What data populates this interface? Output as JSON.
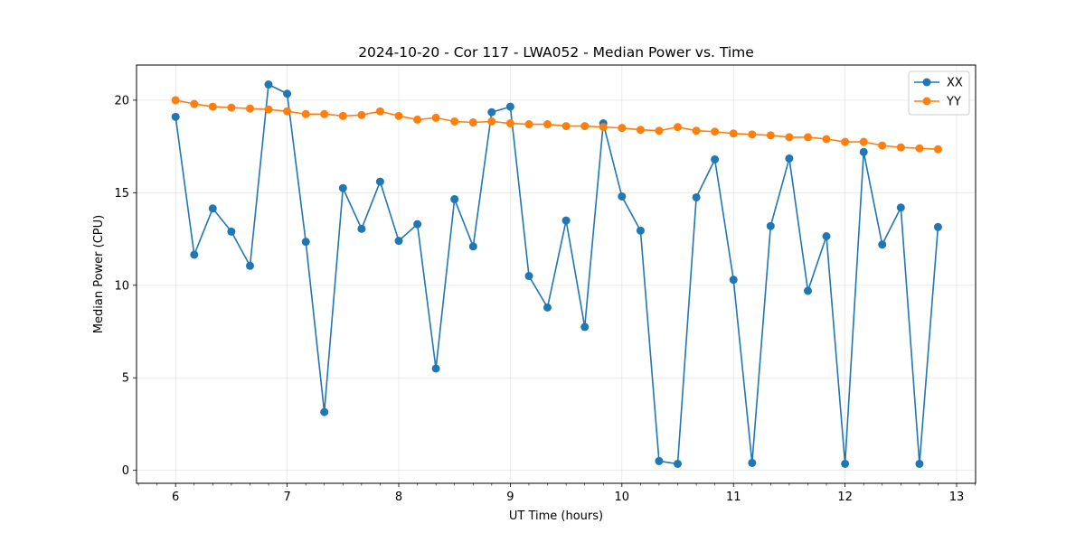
{
  "chart_data": {
    "type": "line",
    "title": "2024-10-20 - Cor 117 - LWA052 - Median Power vs. Time",
    "xlabel": "UT Time (hours)",
    "ylabel": "Median Power (CPU)",
    "xlim": [
      5.65,
      13.17
    ],
    "ylim": [
      -0.7,
      21.9
    ],
    "xticks": [
      6,
      7,
      8,
      9,
      10,
      11,
      12,
      13
    ],
    "yticks": [
      0,
      5,
      10,
      15,
      20
    ],
    "grid": true,
    "legend_position": "top-right",
    "x": [
      6.0,
      6.167,
      6.333,
      6.5,
      6.667,
      6.833,
      7.0,
      7.167,
      7.333,
      7.5,
      7.667,
      7.833,
      8.0,
      8.167,
      8.333,
      8.5,
      8.667,
      8.833,
      9.0,
      9.167,
      9.333,
      9.5,
      9.667,
      9.833,
      10.0,
      10.167,
      10.333,
      10.5,
      10.667,
      10.833,
      11.0,
      11.167,
      11.333,
      11.5,
      11.667,
      11.833,
      12.0,
      12.167,
      12.333,
      12.5,
      12.667,
      12.833
    ],
    "series": [
      {
        "name": "XX",
        "color": "#1f77b4",
        "values": [
          19.1,
          11.65,
          14.15,
          12.9,
          11.05,
          20.85,
          20.35,
          12.35,
          3.15,
          15.25,
          13.05,
          15.6,
          12.4,
          13.3,
          5.5,
          14.65,
          12.1,
          19.35,
          19.65,
          10.5,
          8.8,
          13.5,
          7.75,
          18.75,
          14.8,
          12.95,
          0.5,
          0.35,
          14.75,
          16.8,
          10.3,
          0.4,
          13.2,
          16.85,
          9.7,
          12.65,
          0.35,
          17.2,
          12.2,
          14.2,
          0.35,
          13.15
        ]
      },
      {
        "name": "YY",
        "color": "#ff7f0e",
        "values": [
          20.0,
          19.8,
          19.65,
          19.6,
          19.55,
          19.5,
          19.4,
          19.25,
          19.25,
          19.15,
          19.2,
          19.4,
          19.15,
          18.95,
          19.05,
          18.85,
          18.8,
          18.85,
          18.75,
          18.7,
          18.7,
          18.6,
          18.6,
          18.55,
          18.5,
          18.4,
          18.35,
          18.55,
          18.35,
          18.3,
          18.2,
          18.15,
          18.1,
          18.0,
          18.0,
          17.9,
          17.75,
          17.75,
          17.55,
          17.45,
          17.4,
          17.35
        ]
      }
    ]
  }
}
